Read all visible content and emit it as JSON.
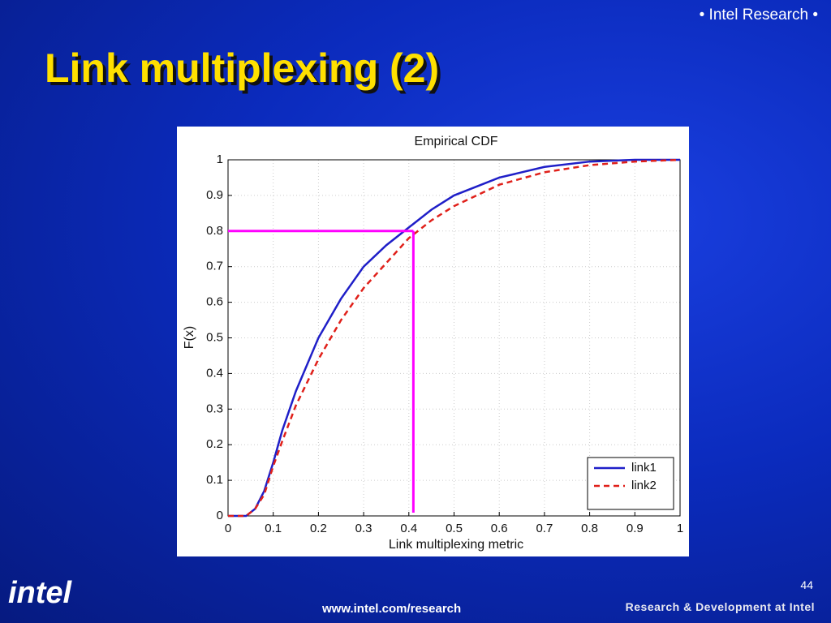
{
  "header": {
    "tag": "• Intel Research •",
    "title": "Link multiplexing (2)"
  },
  "chart_data": {
    "type": "line",
    "title": "Empirical CDF",
    "x_label": "Link multiplexing metric",
    "y_label": "F(x)",
    "x": [
      0,
      0.02,
      0.04,
      0.06,
      0.08,
      0.1,
      0.12,
      0.15,
      0.2,
      0.25,
      0.3,
      0.35,
      0.4,
      0.45,
      0.5,
      0.6,
      0.7,
      0.8,
      0.9,
      1
    ],
    "series": [
      {
        "name": "link1",
        "color": "#1f1fc8",
        "line_style": "solid",
        "values": [
          0,
          0,
          0,
          0.02,
          0.07,
          0.15,
          0.24,
          0.35,
          0.5,
          0.61,
          0.7,
          0.76,
          0.81,
          0.86,
          0.9,
          0.95,
          0.98,
          0.995,
          1,
          1
        ]
      },
      {
        "name": "link2",
        "color": "#e0201a",
        "line_style": "dashed",
        "values": [
          0,
          0,
          0,
          0.02,
          0.06,
          0.14,
          0.21,
          0.31,
          0.44,
          0.55,
          0.64,
          0.71,
          0.78,
          0.83,
          0.87,
          0.93,
          0.965,
          0.985,
          0.995,
          1
        ]
      }
    ],
    "xlim": [
      0,
      1
    ],
    "ylim": [
      0,
      1
    ],
    "xticks": [
      0,
      0.1,
      0.2,
      0.3,
      0.4,
      0.5,
      0.6,
      0.7,
      0.8,
      0.9,
      1
    ],
    "yticks": [
      0,
      0.1,
      0.2,
      0.3,
      0.4,
      0.5,
      0.6,
      0.7,
      0.8,
      0.9,
      1
    ],
    "grid": true,
    "legend": "lower-right",
    "reference": {
      "x": 0.41,
      "y": 0.8,
      "color": "#ff00ff"
    }
  },
  "footer": {
    "logo": "intel",
    "page": "44",
    "url": "www.intel.com/research",
    "tagline": "Research & Development at Intel"
  }
}
